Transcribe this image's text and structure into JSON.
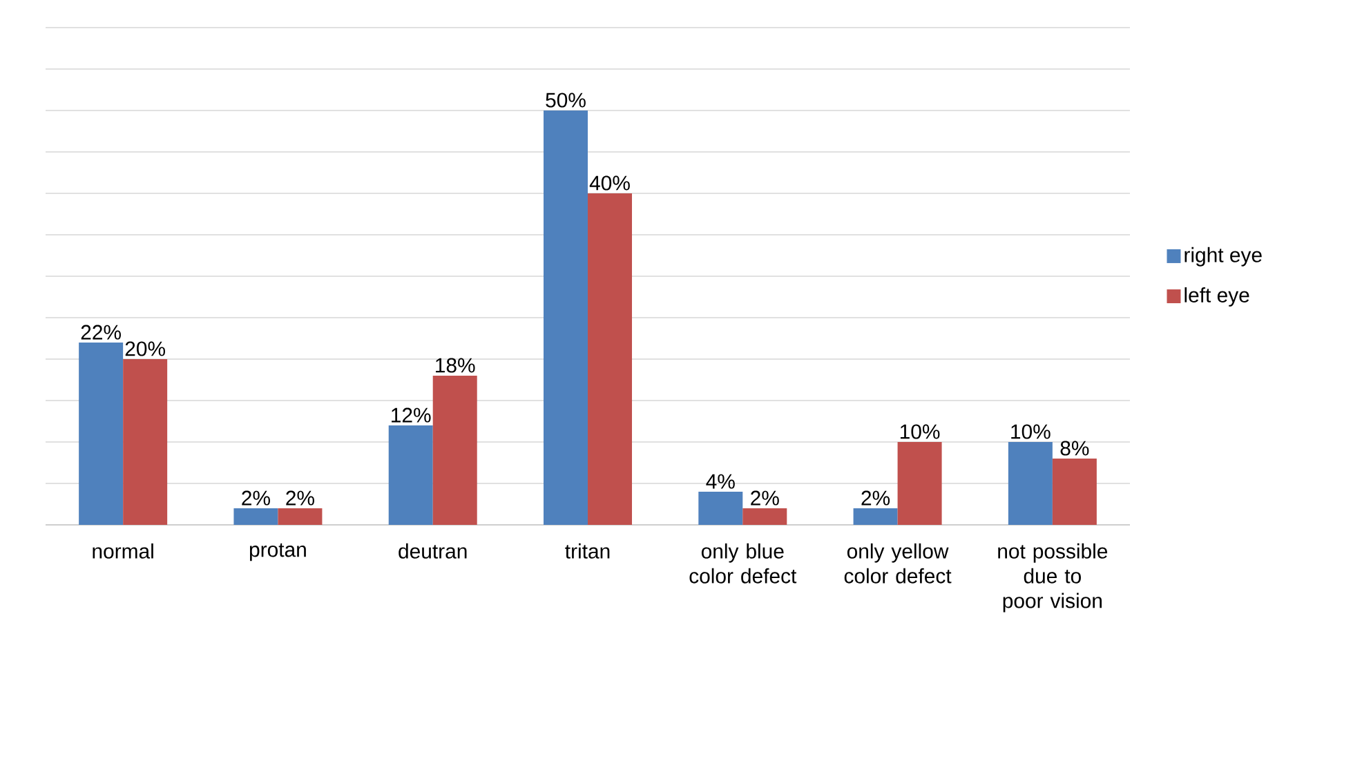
{
  "chart_data": {
    "type": "bar",
    "categories": [
      "normal",
      "protan",
      "deutran",
      "tritan",
      "only blue color defect",
      "only yellow color defect",
      "not possible due to poor vision"
    ],
    "series": [
      {
        "name": "right eye",
        "color": "#4f81bd",
        "values": [
          22,
          2,
          12,
          50,
          4,
          2,
          10
        ],
        "value_labels": [
          "22%",
          "2%",
          "12%",
          "50%",
          "4%",
          "2%",
          "10%"
        ]
      },
      {
        "name": "left eye",
        "color": "#c0504d",
        "values": [
          20,
          2,
          18,
          40,
          2,
          10,
          8
        ],
        "value_labels": [
          "20%",
          "2%",
          "18%",
          "40%",
          "2%",
          "10%",
          "8%"
        ]
      }
    ],
    "grid": "y",
    "legend": "right",
    "tick_labels": "x"
  }
}
